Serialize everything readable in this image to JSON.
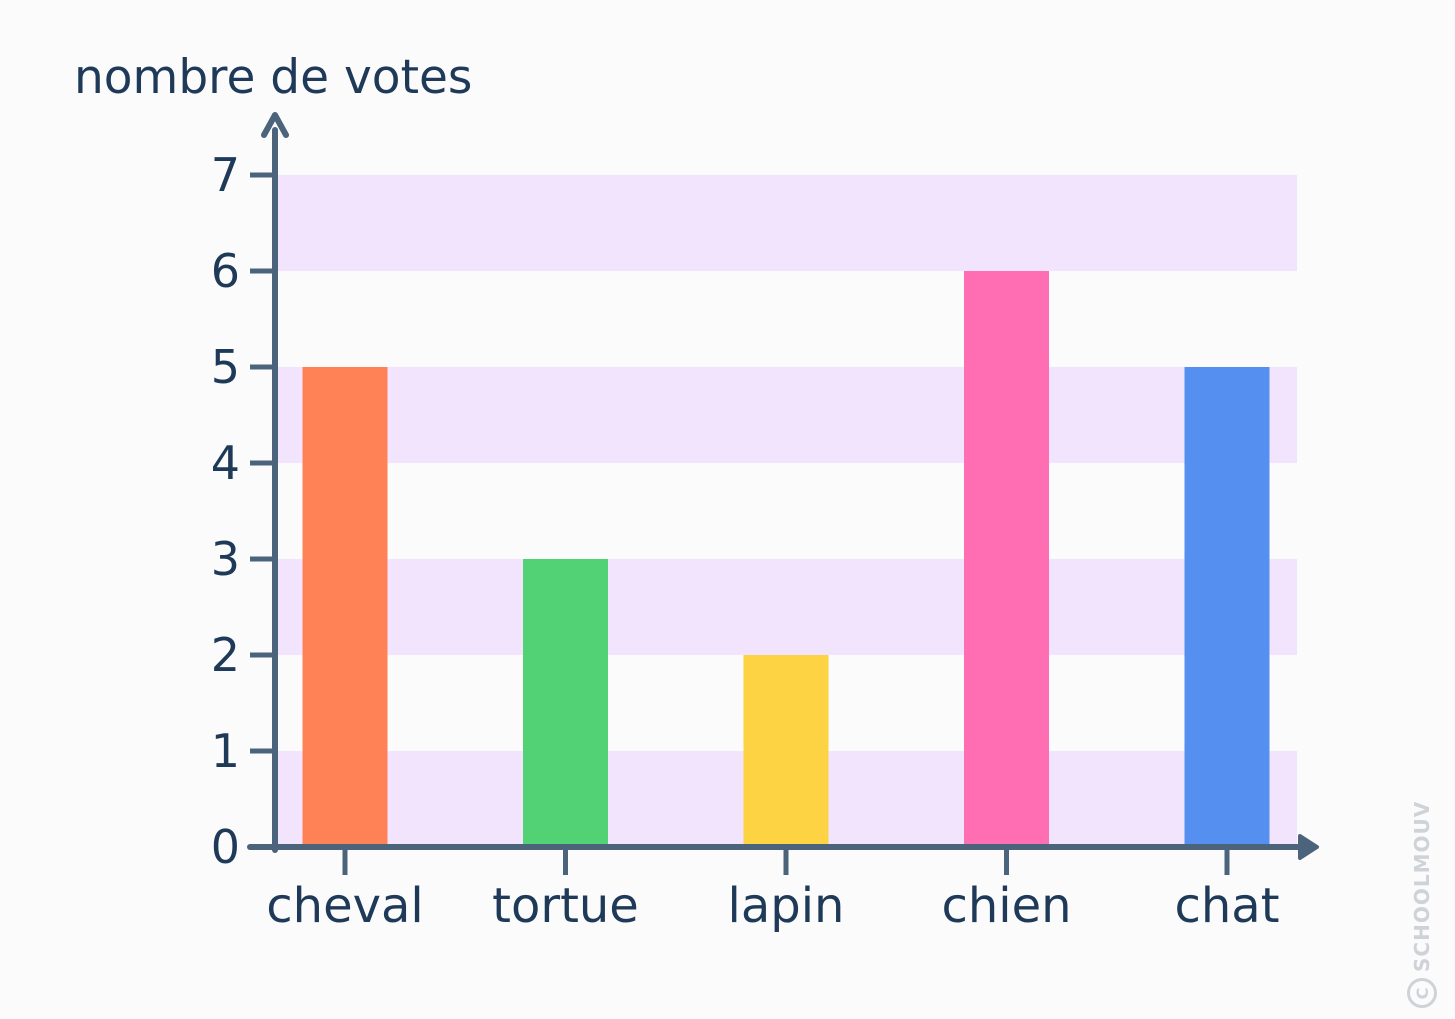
{
  "chart_data": {
    "type": "bar",
    "categories": [
      "cheval",
      "tortue",
      "lapin",
      "chien",
      "chat"
    ],
    "values": [
      5,
      3,
      2,
      6,
      5
    ],
    "bar_colors": [
      "#ff8257",
      "#52d175",
      "#fdd243",
      "#ff6eb3",
      "#558ff0"
    ],
    "ylabel": "nombre de votes",
    "xlabel": "",
    "ylim": [
      0,
      7
    ],
    "yticks": [
      0,
      1,
      2,
      3,
      4,
      5,
      6,
      7
    ],
    "band_color": "#f2e4fd",
    "axis_color": "#4b637b",
    "text_color": "#1f3a58",
    "grid": "alternating horizontal bands"
  },
  "watermark": {
    "text": "SCHOOLMOUV",
    "symbol": "C"
  }
}
